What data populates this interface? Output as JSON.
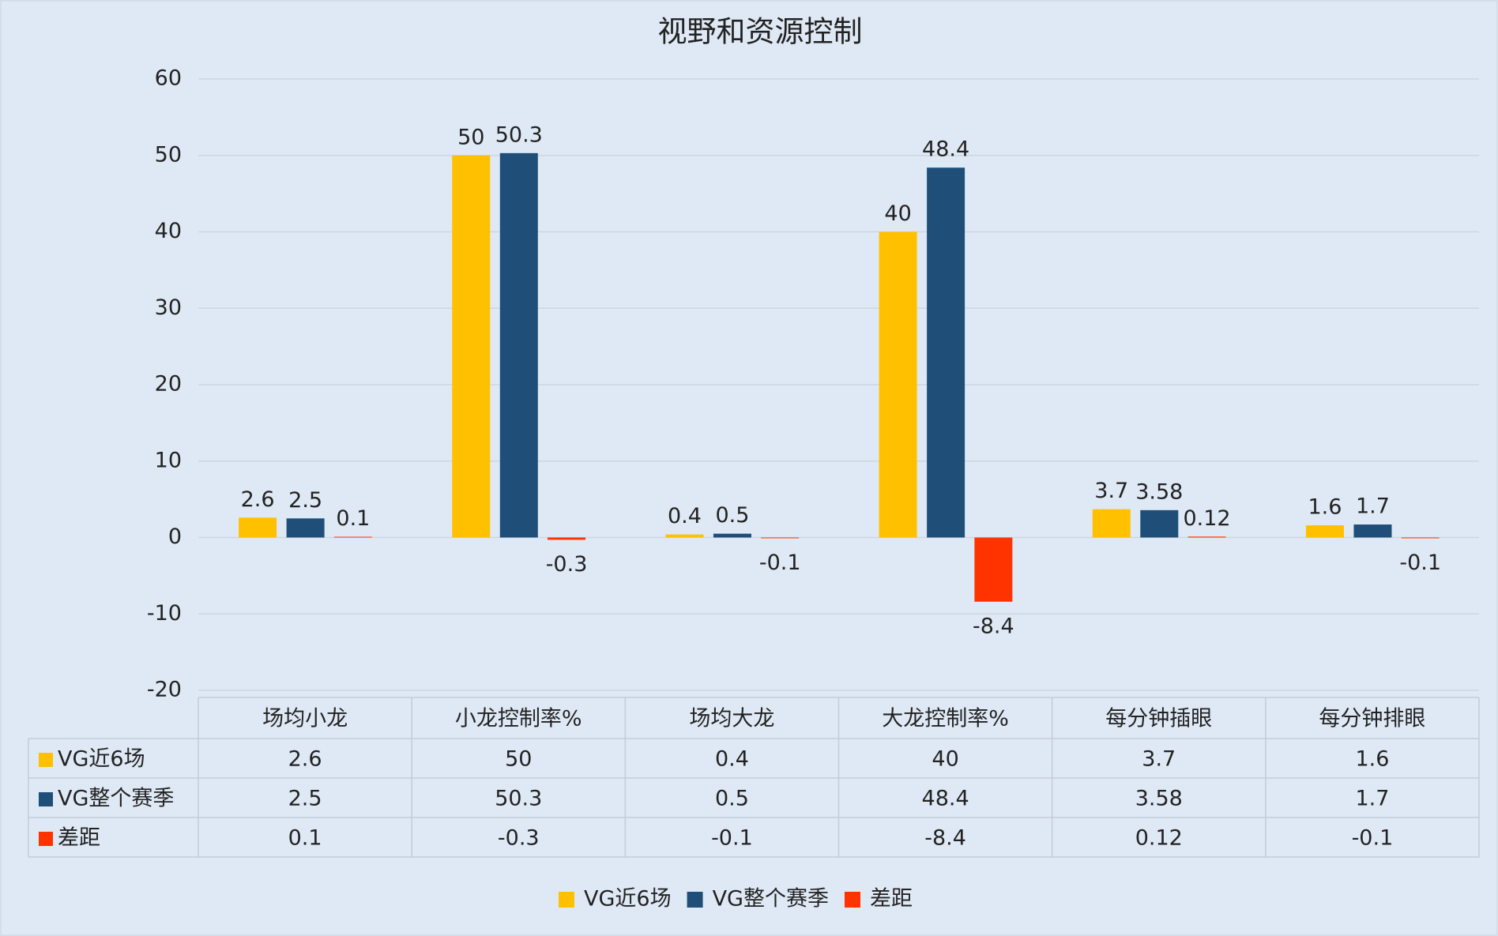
{
  "chart_data": {
    "type": "bar",
    "title": "视野和资源控制",
    "categories": [
      "场均小龙",
      "小龙控制率%",
      "场均大龙",
      "大龙控制率%",
      "每分钟插眼",
      "每分钟排眼"
    ],
    "series": [
      {
        "name": "VG近6场",
        "color": "#FFC000",
        "values": [
          2.6,
          50,
          0.4,
          40,
          3.7,
          1.6
        ]
      },
      {
        "name": "VG整个赛季",
        "color": "#1F4E79",
        "values": [
          2.5,
          50.3,
          0.5,
          48.4,
          3.58,
          1.7
        ]
      },
      {
        "name": "差距",
        "color": "#FF3300",
        "values": [
          0.1,
          -0.3,
          -0.1,
          -8.4,
          0.12,
          -0.1
        ]
      }
    ],
    "ylim": [
      -20,
      60
    ],
    "yticks": [
      -20,
      -10,
      0,
      10,
      20,
      30,
      40,
      50,
      60
    ],
    "grid": true,
    "legend": "bottom",
    "data_table": true
  }
}
